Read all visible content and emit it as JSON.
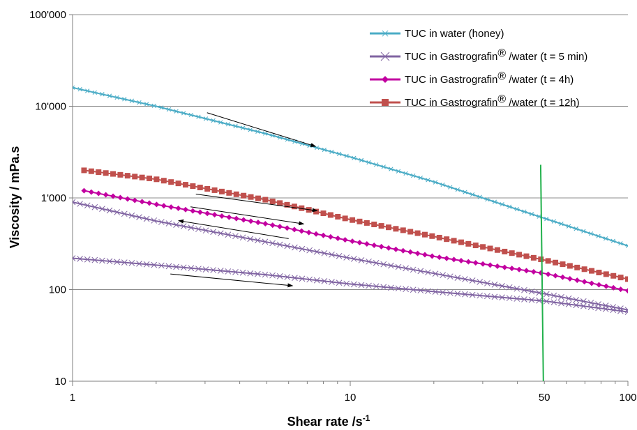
{
  "chart_data": {
    "type": "line",
    "title": "",
    "xlabel": "Shear rate /s",
    "xlabel_sup": "-1",
    "ylabel": "Viscosity / mPa.s",
    "x_scale": "log",
    "y_scale": "log",
    "xlim": [
      1,
      100
    ],
    "ylim": [
      10,
      100000
    ],
    "x_ticks": [
      {
        "value": 1,
        "label": "1"
      },
      {
        "value": 10,
        "label": "10"
      },
      {
        "value": 50,
        "label": "50"
      },
      {
        "value": 100,
        "label": "100"
      }
    ],
    "y_ticks": [
      {
        "value": 10,
        "label": "10"
      },
      {
        "value": 100,
        "label": "100"
      },
      {
        "value": 1000,
        "label": "1'000"
      },
      {
        "value": 10000,
        "label": "10'000"
      },
      {
        "value": 100000,
        "label": "100'000"
      }
    ],
    "grid": "horizontal major gridlines",
    "legend_position": "top-right",
    "series": [
      {
        "name": "TUC in water (honey)",
        "color": "#4BACC6",
        "marker": "asterisk",
        "x": [
          1,
          2,
          5,
          10,
          20,
          50,
          100
        ],
        "y": [
          16000,
          10000,
          5000,
          2800,
          1500,
          600,
          300
        ]
      },
      {
        "name": "TUC in Gastrografin® /water (t = 5 min)",
        "color": "#8064A2",
        "marker": "x",
        "x": [
          1,
          2,
          5,
          10,
          20,
          50,
          100
        ],
        "y": [
          900,
          560,
          330,
          220,
          150,
          90,
          60
        ],
        "x2": [
          1,
          2,
          5,
          10,
          20,
          50,
          100
        ],
        "y2": [
          220,
          185,
          145,
          115,
          95,
          75,
          57
        ]
      },
      {
        "name": "TUC in Gastrografin® /water (t = 4h)",
        "color": "#C200A0",
        "marker": "diamond",
        "x": [
          1.1,
          2,
          5,
          10,
          20,
          50,
          100
        ],
        "y": [
          1200,
          850,
          520,
          340,
          230,
          150,
          97
        ]
      },
      {
        "name": "TUC in Gastrografin® /water (t = 12h)",
        "color": "#C0504D",
        "marker": "square",
        "x": [
          1.1,
          2,
          5,
          10,
          20,
          50,
          100
        ],
        "y": [
          2000,
          1600,
          950,
          580,
          380,
          210,
          130
        ]
      }
    ],
    "annotations": [
      {
        "type": "arrow",
        "direction": "forward",
        "x1": 3.05,
        "y1": 8500,
        "x2": 7.5,
        "y2": 3650
      },
      {
        "type": "arrow",
        "direction": "forward",
        "x1": 2.78,
        "y1": 1100,
        "x2": 7.6,
        "y2": 725
      },
      {
        "type": "arrow",
        "direction": "forward",
        "x1": 2.66,
        "y1": 800,
        "x2": 6.8,
        "y2": 520
      },
      {
        "type": "arrow",
        "direction": "backward",
        "x1": 6.0,
        "y1": 360,
        "x2": 2.41,
        "y2": 565
      },
      {
        "type": "arrow",
        "direction": "forward",
        "x1": 2.25,
        "y1": 148,
        "x2": 6.2,
        "y2": 110
      },
      {
        "type": "vline",
        "color": "#22B14C",
        "x1": 48.5,
        "y1": 2300,
        "x2": 49.6,
        "y2": 10
      }
    ]
  }
}
